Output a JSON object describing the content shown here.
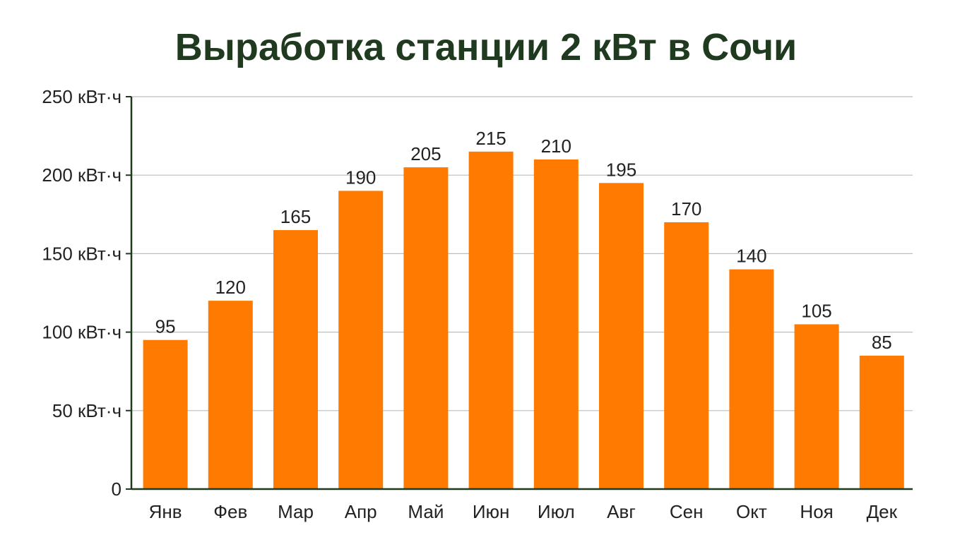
{
  "colors": {
    "title": "#1f3a1f",
    "bar": "#ff7a00",
    "text": "#222222",
    "grid": "#b9bfb9",
    "axis": "#1f3a1f"
  },
  "chart_data": {
    "type": "bar",
    "title": "Выработка станции 2 кВт в Сочи",
    "xlabel": "",
    "ylabel": "",
    "categories": [
      "Янв",
      "Фев",
      "Мар",
      "Апр",
      "Май",
      "Июн",
      "Июл",
      "Авг",
      "Сен",
      "Окт",
      "Ноя",
      "Дек"
    ],
    "values": [
      95,
      120,
      165,
      190,
      205,
      215,
      210,
      195,
      170,
      140,
      105,
      85
    ],
    "ylim": [
      0,
      250
    ],
    "yticks": [
      0,
      50,
      100,
      150,
      200,
      250
    ],
    "ytick_labels": [
      "0",
      "50 кВт·ч",
      "100 кВт·ч",
      "150 кВт·ч",
      "200 кВт·ч",
      "250 кВт·ч"
    ],
    "grid": true,
    "legend": "none"
  }
}
